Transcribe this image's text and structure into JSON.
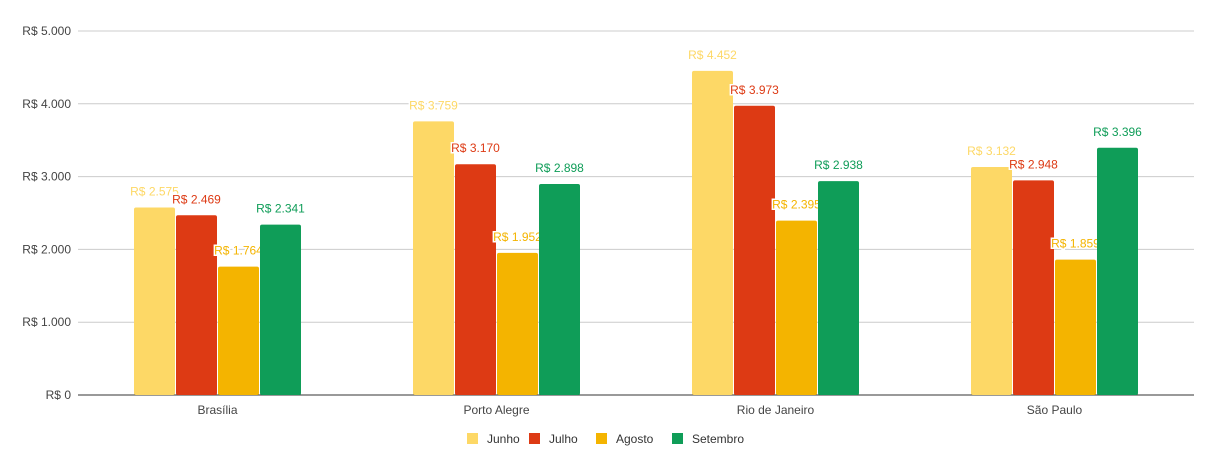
{
  "chart_data": {
    "type": "bar",
    "categories": [
      "Brasília",
      "Porto Alegre",
      "Rio de Janeiro",
      "São Paulo"
    ],
    "series": [
      {
        "name": "Junho",
        "color": "#fdd866",
        "values": [
          2575,
          3759,
          4452,
          3132
        ],
        "labels": [
          "R$ 2.575",
          "R$ 3.759",
          "R$ 4.452",
          "R$ 3.132"
        ]
      },
      {
        "name": "Julho",
        "color": "#dd3a14",
        "values": [
          2469,
          3170,
          3973,
          2948
        ],
        "labels": [
          "R$ 2.469",
          "R$ 3.170",
          "R$ 3.973",
          "R$ 2.948"
        ]
      },
      {
        "name": "Agosto",
        "color": "#f4b400",
        "values": [
          1764,
          1952,
          2395,
          1859
        ],
        "labels": [
          "R$ 1.764",
          "R$ 1.952",
          "R$ 2.395",
          "R$ 1.859"
        ]
      },
      {
        "name": "Setembro",
        "color": "#0f9d58",
        "values": [
          2341,
          2898,
          2938,
          3396
        ],
        "labels": [
          "R$ 2.341",
          "R$ 2.898",
          "R$ 2.938",
          "R$ 3.396"
        ]
      }
    ],
    "ylim": [
      0,
      5000
    ],
    "yticks": [
      0,
      1000,
      2000,
      3000,
      4000,
      5000
    ],
    "ytick_labels": [
      "R$ 0",
      "R$ 1.000",
      "R$ 2.000",
      "R$ 3.000",
      "R$ 4.000",
      "R$ 5.000"
    ],
    "grid": true,
    "legend": "bottom",
    "xlabel": "",
    "ylabel": "",
    "title": ""
  }
}
